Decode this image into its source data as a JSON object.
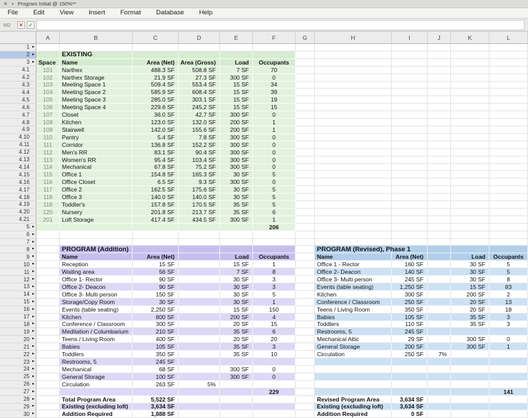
{
  "titlebar": {
    "close_glyph": "✕",
    "add_glyph": "+",
    "title": "Program Initial @ 150%**"
  },
  "menubar": {
    "items": [
      "File",
      "Edit",
      "View",
      "Insert",
      "Format",
      "Database",
      "Help"
    ]
  },
  "formula_bar": {
    "cell_ref": "M2",
    "cancel_glyph": "✕",
    "accept_glyph": "✓",
    "value": ""
  },
  "grid": {
    "column_headers": [
      "A",
      "B",
      "C",
      "D",
      "E",
      "F",
      "G",
      "H",
      "I",
      "J",
      "K",
      "L"
    ],
    "row_labels": [
      "1",
      "2",
      "3",
      "4.1",
      "4.2",
      "4.3",
      "4.4",
      "4.5",
      "4.6",
      "4.7",
      "4.8",
      "4.9",
      "4.10",
      "4.11",
      "4.12",
      "4.13",
      "4.14",
      "4.15",
      "4.16",
      "4.17",
      "4.18",
      "4.19",
      "4.20",
      "4.21",
      "5",
      "6",
      "7",
      "8",
      "9",
      "10",
      "11",
      "12",
      "13",
      "14",
      "15",
      "16",
      "17",
      "18",
      "19",
      "20",
      "21",
      "22",
      "23",
      "24",
      "25",
      "26",
      "27",
      "28",
      "29",
      "30"
    ],
    "selected_row": "2",
    "group_marker_glyph": "►"
  },
  "existing_table": {
    "title": "EXISTING",
    "headers": {
      "space": "Space",
      "name": "Name",
      "area_net": "Area (Net)",
      "area_gross": "Area (Gross)",
      "load": "Load",
      "occupants": "Occupants"
    },
    "rows": [
      [
        "101",
        "Narthex",
        "488.3 SF",
        "508.8 SF",
        "7 SF",
        "70"
      ],
      [
        "102",
        "Narthex Storage",
        "21.9 SF",
        "27.3 SF",
        "300 SF",
        "0"
      ],
      [
        "103",
        "Meeting Space 1",
        "509.4 SF",
        "553.4 SF",
        "15 SF",
        "34"
      ],
      [
        "104",
        "Meeting Space 2",
        "585.9 SF",
        "608.4 SF",
        "15 SF",
        "39"
      ],
      [
        "105",
        "Meeting Space 3",
        "285.0 SF",
        "303.1 SF",
        "15 SF",
        "19"
      ],
      [
        "106",
        "Meeting Space 4",
        "229.6 SF",
        "245.2 SF",
        "15 SF",
        "15"
      ],
      [
        "107",
        "Closet",
        "36.0 SF",
        "42.7 SF",
        "300 SF",
        "0"
      ],
      [
        "108",
        "Kitchen",
        "123.0 SF",
        "132.0 SF",
        "200 SF",
        "1"
      ],
      [
        "109",
        "Stairwell",
        "142.0 SF",
        "155.6 SF",
        "200 SF",
        "1"
      ],
      [
        "110",
        "Pantry",
        "5.4 SF",
        "7.8 SF",
        "300 SF",
        "0"
      ],
      [
        "111",
        "Corridor",
        "136.8 SF",
        "152.2 SF",
        "300 SF",
        "0"
      ],
      [
        "112",
        "Men's RR",
        "83.1 SF",
        "90.4 SF",
        "300 SF",
        "0"
      ],
      [
        "113",
        "Women's RR",
        "95.4 SF",
        "103.4 SF",
        "300 SF",
        "0"
      ],
      [
        "114",
        "Mechanical",
        "67.8 SF",
        "75.2 SF",
        "300 SF",
        "0"
      ],
      [
        "115",
        "Office 1",
        "154.8 SF",
        "165.3 SF",
        "30 SF",
        "5"
      ],
      [
        "116",
        "Office Closet",
        "6.5 SF",
        "9.3 SF",
        "300 SF",
        "0"
      ],
      [
        "117",
        "Office 2",
        "162.5 SF",
        "175.6 SF",
        "30 SF",
        "5"
      ],
      [
        "118",
        "Office 3",
        "140.0 SF",
        "140.0 SF",
        "30 SF",
        "5"
      ],
      [
        "119",
        "Toddler's",
        "157.8 SF",
        "170.5 SF",
        "35 SF",
        "5"
      ],
      [
        "120",
        "Nursery",
        "201.8 SF",
        "213.7 SF",
        "35 SF",
        "6"
      ],
      [
        "201",
        "Loft Storage",
        "417.4 SF",
        "434.5 SF",
        "300 SF",
        "1"
      ]
    ],
    "total_occupants": "206"
  },
  "program_addition": {
    "title": "PROGRAM (Addition)",
    "headers": {
      "name": "Name",
      "area_net": "Area (Net)",
      "load": "Load",
      "occupants": "Occupants"
    },
    "rows": [
      [
        "Reception",
        "15 SF",
        "",
        "15 SF",
        "1"
      ],
      [
        "Waiting area",
        "56 SF",
        "",
        "7 SF",
        "8"
      ],
      [
        "Office 1- Rector",
        "90 SF",
        "",
        "30 SF",
        "3"
      ],
      [
        "Office 2- Deacon",
        "90 SF",
        "",
        "30 SF",
        "3"
      ],
      [
        "Office 3- Multi person",
        "150 SF",
        "",
        "30 SF",
        "5"
      ],
      [
        "Storage/Copy Room",
        "30 SF",
        "",
        "30 SF",
        "1"
      ],
      [
        "Events (table seating)",
        "2,250 SF",
        "",
        "15 SF",
        "150"
      ],
      [
        "Kitchen",
        "800 SF",
        "",
        "200 SF",
        "4"
      ],
      [
        "Conference / Classroom",
        "300 SF",
        "",
        "20 SF",
        "15"
      ],
      [
        "Meditation / Columbarium",
        "210 SF",
        "",
        "35 SF",
        "6"
      ],
      [
        "Teens / Living Room",
        "400 SF",
        "",
        "20 SF",
        "20"
      ],
      [
        "Babies",
        "105 SF",
        "",
        "35 SF",
        "3"
      ],
      [
        "Toddlers",
        "350 SF",
        "",
        "35 SF",
        "10"
      ],
      [
        "Restrooms, 5",
        "245 SF",
        "",
        "",
        ""
      ],
      [
        "Mechanical",
        "68 SF",
        "",
        "300 SF",
        "0"
      ],
      [
        "General Storage",
        "100 SF",
        "",
        "300 SF",
        "0"
      ],
      [
        "Circulation",
        "263 SF",
        "5%",
        "",
        ""
      ]
    ],
    "total_occupants": "229",
    "summary": [
      [
        "Total Program Area",
        "5,522 SF"
      ],
      [
        "Existing (excluding loft)",
        "3,634 SF"
      ],
      [
        "Addition Required",
        "1,888 SF"
      ]
    ]
  },
  "program_revised": {
    "title": "PROGRAM (Revised), Phase 1",
    "headers": {
      "name": "Name",
      "area_net": "Area (Net)",
      "load": "Load",
      "occupants": "Occupants"
    },
    "rows": [
      [
        "Office 1 - Rector",
        "160 SF",
        "",
        "30 SF",
        "5"
      ],
      [
        "Office 2- Deacon",
        "140 SF",
        "",
        "30 SF",
        "5"
      ],
      [
        "Office 3- Multi person",
        "245 SF",
        "",
        "30 SF",
        "8"
      ],
      [
        "Events (table seating)",
        "1,250 SF",
        "",
        "15 SF",
        "83"
      ],
      [
        "Kitchen",
        "300 SF",
        "",
        "200 SF",
        "2"
      ],
      [
        "Conference / Classroom",
        "250 SF",
        "",
        "20 SF",
        "13"
      ],
      [
        "Teens / Living Room",
        "350 SF",
        "",
        "20 SF",
        "18"
      ],
      [
        "Babies",
        "105 SF",
        "",
        "35 SF",
        "3"
      ],
      [
        "Toddlers",
        "110 SF",
        "",
        "35 SF",
        "3"
      ],
      [
        "Restrooms, 5",
        "245 SF",
        "",
        "",
        ""
      ],
      [
        "Mechanical Attic",
        "29 SF",
        "",
        "300 SF",
        "0"
      ],
      [
        "General Storage",
        "200 SF",
        "",
        "300 SF",
        "1"
      ],
      [
        "Circulation",
        "250 SF",
        "7%",
        "",
        ""
      ]
    ],
    "total_occupants": "141",
    "summary": [
      [
        "Revised Program Area",
        "3,634 SF"
      ],
      [
        "Existing (excluding loft)",
        "3,634 SF"
      ],
      [
        "Addition Required",
        "0 SF"
      ]
    ]
  },
  "colors": {
    "existing_header_bg": "#d6ecd0",
    "existing_body_bg": "#e3f2de",
    "addition_header_bg": "#c6bfed",
    "addition_stripe_bg": "#dcd8f6",
    "revised_header_bg": "#b2cfe9",
    "revised_stripe_bg": "#cce1f4",
    "selected_row_header_bg": "#b3c9e6",
    "white_row_bg": "#ffffff"
  }
}
